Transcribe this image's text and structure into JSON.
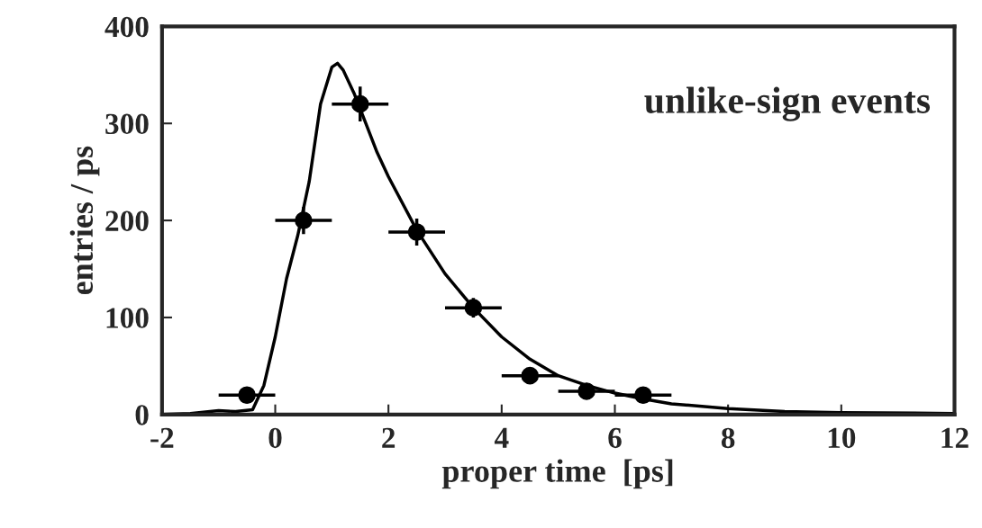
{
  "chart_data": {
    "type": "scatter",
    "xlabel": "proper time  [ps]",
    "ylabel": "entries / ps",
    "annotations": [
      "unlike-sign events"
    ],
    "xlim": [
      -2,
      12
    ],
    "ylim": [
      0,
      400
    ],
    "xticks": [
      -2,
      0,
      2,
      4,
      6,
      8,
      10,
      12
    ],
    "yticks": [
      0,
      100,
      200,
      300,
      400
    ],
    "grid": false,
    "legend": false,
    "series": [
      {
        "color": "#000000",
        "marker": "circle",
        "x": [
          -0.5,
          0.5,
          1.5,
          2.5,
          3.5,
          4.5,
          5.5,
          6.5
        ],
        "values": [
          20,
          200,
          320,
          188,
          110,
          40,
          24,
          20
        ],
        "errors": [
          5,
          14,
          18,
          14,
          10,
          6,
          5,
          5
        ],
        "xerrors": [
          0.5,
          0.5,
          0.5,
          0.5,
          0.5,
          0.5,
          0.5,
          0.5
        ]
      },
      {
        "type": "line",
        "color": "#000000",
        "marker": "none",
        "line_style": "solid",
        "x": [
          -2,
          -1.5,
          -1,
          -0.7,
          -0.4,
          -0.2,
          0,
          0.2,
          0.4,
          0.6,
          0.8,
          1.0,
          1.1,
          1.2,
          1.4,
          1.6,
          1.8,
          2,
          2.5,
          3,
          3.5,
          4,
          4.5,
          5,
          5.5,
          6,
          6.5,
          7,
          8,
          9,
          10,
          12
        ],
        "values": [
          0,
          1,
          4,
          3,
          5,
          30,
          80,
          140,
          185,
          240,
          320,
          358,
          362,
          355,
          330,
          300,
          270,
          245,
          190,
          145,
          110,
          80,
          57,
          40,
          30,
          22,
          16,
          11,
          6,
          3,
          2,
          1
        ]
      }
    ]
  }
}
